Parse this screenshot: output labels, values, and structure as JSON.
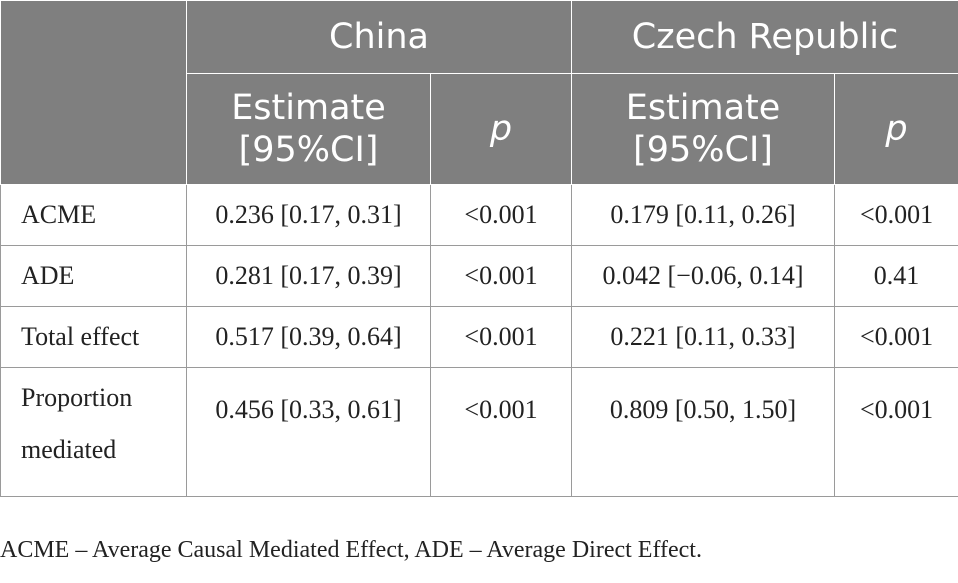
{
  "header": {
    "groups": [
      "China",
      "Czech Republic"
    ],
    "estimate_label": "Estimate [95%CI]",
    "p_label": "p"
  },
  "rows": [
    {
      "label": "ACME",
      "china_estimate": "0.236 [0.17, 0.31]",
      "china_p": "<0.001",
      "czech_estimate": "0.179 [0.11, 0.26]",
      "czech_p": "<0.001"
    },
    {
      "label": "ADE",
      "china_estimate": "0.281 [0.17, 0.39]",
      "china_p": "<0.001",
      "czech_estimate": "0.042 [−0.06, 0.14]",
      "czech_p": "0.41"
    },
    {
      "label": "Total effect",
      "china_estimate": "0.517 [0.39, 0.64]",
      "china_p": "<0.001",
      "czech_estimate": "0.221 [0.11, 0.33]",
      "czech_p": "<0.001"
    },
    {
      "label": "Proportion mediated",
      "china_estimate": "0.456 [0.33, 0.61]",
      "china_p": "<0.001",
      "czech_estimate": "0.809 [0.50, 1.50]",
      "czech_p": "<0.001"
    }
  ],
  "footnote": "ACME – Average Causal Mediated Effect, ADE – Average Direct Effect."
}
